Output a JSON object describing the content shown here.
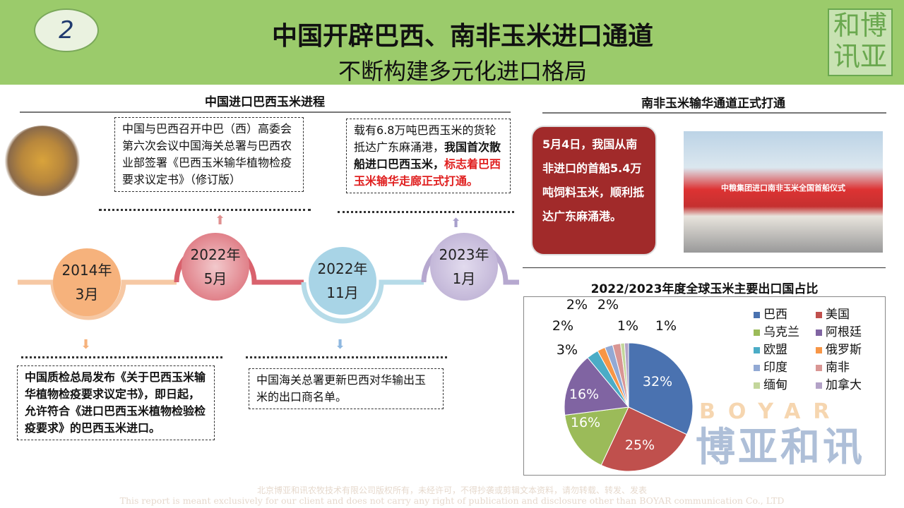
{
  "header": {
    "number": "2",
    "title": "中国开辟巴西、南非玉米进口通道",
    "subtitle": "不断构建多元化进口格局",
    "logo_text": "博亚和讯"
  },
  "left": {
    "section_title": "中国进口巴西玉米进程",
    "milestones": [
      {
        "year": "2014年",
        "month": "3月",
        "color": "#f6b27c",
        "text": "中国质检总局发布《关于巴西玉米输华植物检疫要求议定书》，即日起，允许符合《进口巴西玉米植物检验检疫要求》的巴西玉米进口。"
      },
      {
        "year": "2022年",
        "month": "5月",
        "color": "#d9626d",
        "text": "中国与巴西召开中巴（西）高委会第六次会议中国海关总署与巴西农业部签署《巴西玉米输华植物检疫要求议定书》（修订版）"
      },
      {
        "year": "2022年",
        "month": "11月",
        "color": "#9fd0e4",
        "text": "中国海关总署更新巴西对华输出玉米的出口商名单。"
      },
      {
        "year": "2023年",
        "month": "1月",
        "color": "#b6a8cf",
        "text_normal": "载有6.8万吨巴西玉米的货轮抵达广东麻涌港，",
        "text_bold": "我国首次散船进口巴西玉米，",
        "text_red": "标志着巴西玉米输华走廊正式打通",
        "text_end": "。"
      }
    ]
  },
  "right": {
    "section_title": "南非玉米输华通道正式打通",
    "bubble": "5月4日，我国从南非进口的首船5.4万吨饲料玉米，顺利抵达广东麻涌港。",
    "photo_banner": "中粮集团进口南非玉米全国首船仪式"
  },
  "chart_data": {
    "type": "pie",
    "title": "2022/2023年度全球玉米主要出口国占比",
    "legend_position": "right",
    "categories": [
      "巴西",
      "美国",
      "乌克兰",
      "阿根廷",
      "欧盟",
      "俄罗斯",
      "印度",
      "南非",
      "缅甸",
      "加拿大"
    ],
    "values": [
      32,
      25,
      16,
      16,
      3,
      2,
      2,
      2,
      1,
      1
    ],
    "labels": [
      "32%",
      "25%",
      "16%",
      "16%",
      "3%",
      "2%",
      "2%",
      "2%",
      "1%",
      "1%"
    ],
    "colors": [
      "#4a72b0",
      "#c0504d",
      "#9bbb59",
      "#8064a2",
      "#4bacc6",
      "#f79646",
      "#92a9d4",
      "#d99694",
      "#c3d69b",
      "#b3a2c7"
    ]
  },
  "watermark": {
    "text_en": "BOYAR",
    "text_cn": "博亚和讯"
  },
  "footer": {
    "line1": "北京博亚和讯农牧技术有限公司版权所有，未经许可，不得抄袭或剪辑文本资料，请勿转载、转发、发表",
    "line2": "This report is meant exclusively for our client and does not carry any right of publication and disclosure other than BOYAR communication Co., LTD"
  }
}
